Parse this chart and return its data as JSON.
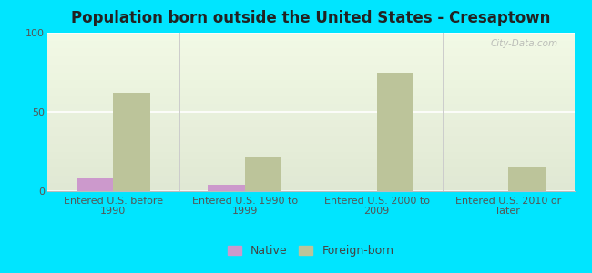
{
  "title": "Population born outside the United States - Cresaptown",
  "categories": [
    "Entered U.S. before\n1990",
    "Entered U.S. 1990 to\n1999",
    "Entered U.S. 2000 to\n2009",
    "Entered U.S. 2010 or\nlater"
  ],
  "native_values": [
    8,
    4,
    0,
    0
  ],
  "foreign_values": [
    62,
    21,
    75,
    15
  ],
  "native_color": "#cc99cc",
  "foreign_color": "#bcc49a",
  "background_outer": "#00e5ff",
  "ylim": [
    0,
    100
  ],
  "yticks": [
    0,
    50,
    100
  ],
  "bar_width": 0.28,
  "title_fontsize": 12,
  "tick_fontsize": 8,
  "legend_labels": [
    "Native",
    "Foreign-born"
  ],
  "watermark": "City-Data.com"
}
